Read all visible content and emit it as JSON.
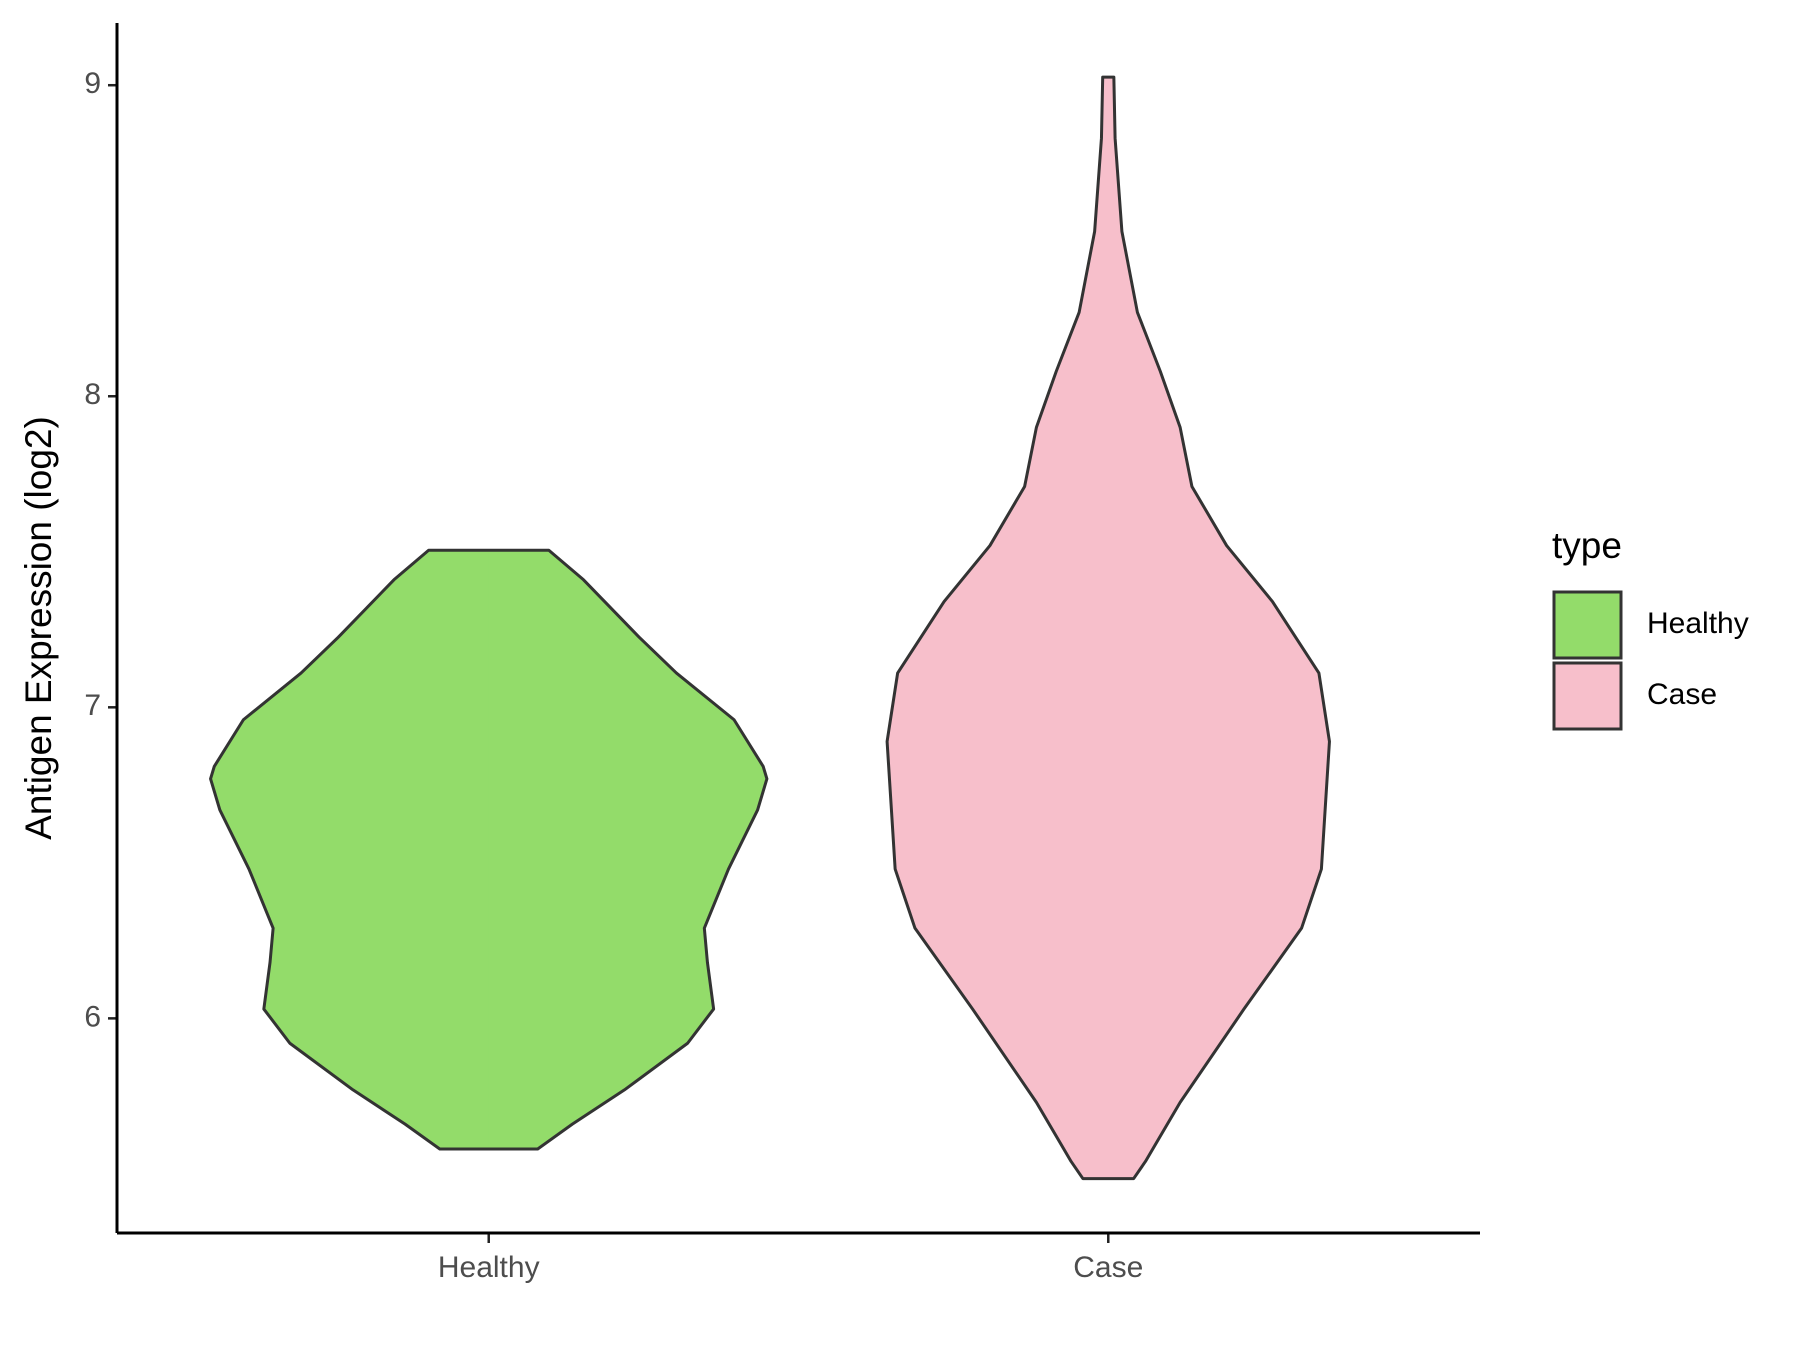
{
  "chart_data": {
    "type": "violin",
    "y_label": "Antigen Expression (log2)",
    "legend_title": "type",
    "categories": [
      "Healthy",
      "Case"
    ],
    "ylim": [
      5.31,
      9.2
    ],
    "yticks": [
      6,
      7,
      8,
      9
    ],
    "series": [
      {
        "name": "Healthy",
        "color": "#93dc6a",
        "y": [
          7.505,
          7.41,
          7.225,
          7.11,
          6.96,
          6.81,
          6.77,
          6.67,
          6.48,
          6.29,
          6.18,
          6.03,
          5.92,
          5.77,
          5.66,
          5.58
        ],
        "widths": [
          0.097,
          0.153,
          0.243,
          0.303,
          0.396,
          0.443,
          0.449,
          0.434,
          0.387,
          0.348,
          0.353,
          0.363,
          0.321,
          0.219,
          0.135,
          0.079
        ]
      },
      {
        "name": "Case",
        "color": "#f7bfcb",
        "y": [
          9.026,
          8.83,
          8.53,
          8.27,
          8.08,
          7.9,
          7.71,
          7.52,
          7.34,
          7.11,
          6.89,
          6.67,
          6.48,
          6.29,
          6.03,
          5.73,
          5.54,
          5.485
        ],
        "widths": [
          0.009,
          0.011,
          0.022,
          0.047,
          0.084,
          0.116,
          0.135,
          0.191,
          0.265,
          0.34,
          0.357,
          0.35,
          0.344,
          0.312,
          0.219,
          0.116,
          0.06,
          0.041
        ]
      }
    ]
  }
}
